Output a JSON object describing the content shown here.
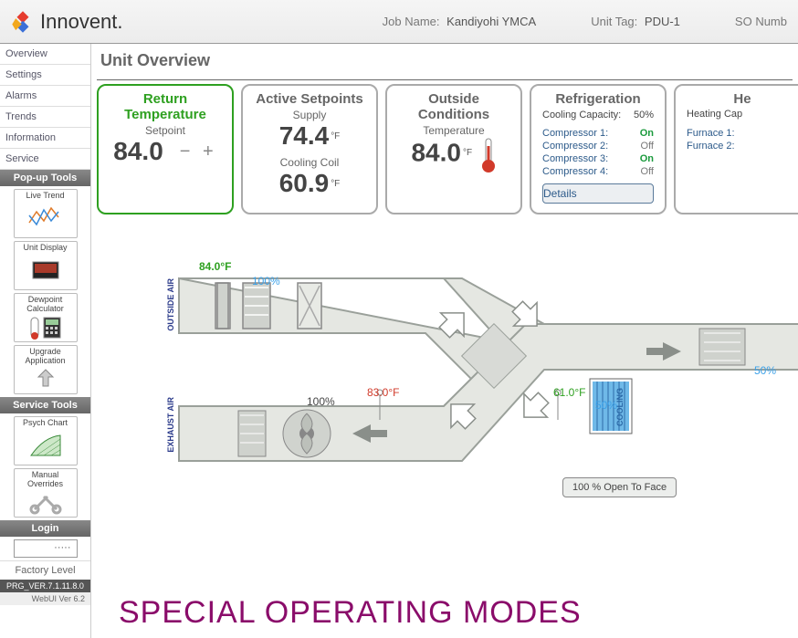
{
  "header": {
    "brand": "Innovent.",
    "job_label": "Job Name:",
    "job_value": "Kandiyohi YMCA",
    "unit_label": "Unit Tag:",
    "unit_value": "PDU-1",
    "so_label": "SO Numb"
  },
  "sidebar": {
    "nav": [
      "Overview",
      "Settings",
      "Alarms",
      "Trends",
      "Information",
      "Service"
    ],
    "popup_header": "Pop-up Tools",
    "popup_tools": [
      "Live Trend",
      "Unit Display",
      "Dewpoint Calculator",
      "Upgrade Application"
    ],
    "service_header": "Service Tools",
    "service_tools": [
      "Psych Chart",
      "Manual Overrides"
    ],
    "login_header": "Login",
    "login_value": "·····",
    "factory": "Factory Level",
    "prg_version": "PRG_VER.7.1.11.8.0",
    "webui_version": "WebUI Ver 6.2"
  },
  "main": {
    "title": "Unit Overview",
    "return_temp": {
      "title": "Return Temperature",
      "sub": "Setpoint",
      "value": "84.0",
      "pm": "− +"
    },
    "active_setpoints": {
      "title": "Active Setpoints",
      "supply_lbl": "Supply",
      "supply_val": "74.4",
      "cool_lbl": "Cooling Coil",
      "cool_val": "60.9",
      "unit": "°F"
    },
    "outside": {
      "title": "Outside Conditions",
      "sub": "Temperature",
      "value": "84.0",
      "unit": "°F",
      "thermo_color": "#d13a2a"
    },
    "refrigeration": {
      "title": "Refrigeration",
      "cap_lbl": "Cooling Capacity:",
      "cap_val": "50%",
      "rows": [
        {
          "lbl": "Compressor 1:",
          "state": "On",
          "on": true
        },
        {
          "lbl": "Compressor 2:",
          "state": "Off",
          "on": false
        },
        {
          "lbl": "Compressor 3:",
          "state": "On",
          "on": true
        },
        {
          "lbl": "Compressor 4:",
          "state": "Off",
          "on": false
        }
      ],
      "details": "Details"
    },
    "heating": {
      "title": "He",
      "cap_lbl": "Heating Cap",
      "rows": [
        "Furnace 1:",
        "Furnace 2:"
      ]
    }
  },
  "diagram": {
    "outside_label": "OUTSIDE AIR",
    "exhaust_label": "EXHAUST AIR",
    "outside_temp": "84.0°F",
    "outside_temp_color": "#2ea020",
    "outside_damper": "100%",
    "outside_damper_color": "#3aa0e8",
    "mid_temp": "83.0°F",
    "mid_temp_color": "#d13a2a",
    "mid_damper": "100%",
    "supply_temp": "61.0°F",
    "supply_temp_color": "#2ea020",
    "cooling_lbl": "COOLING",
    "cooling_damper": "50%",
    "right_damper": "50%",
    "face_label": "100 %   Open To Face",
    "duct_fill": "#e5e7e2",
    "duct_stroke": "#9aa09a",
    "arrow_color": "#8a8f8a"
  },
  "footer_title": "SPECIAL OPERATING MODES"
}
